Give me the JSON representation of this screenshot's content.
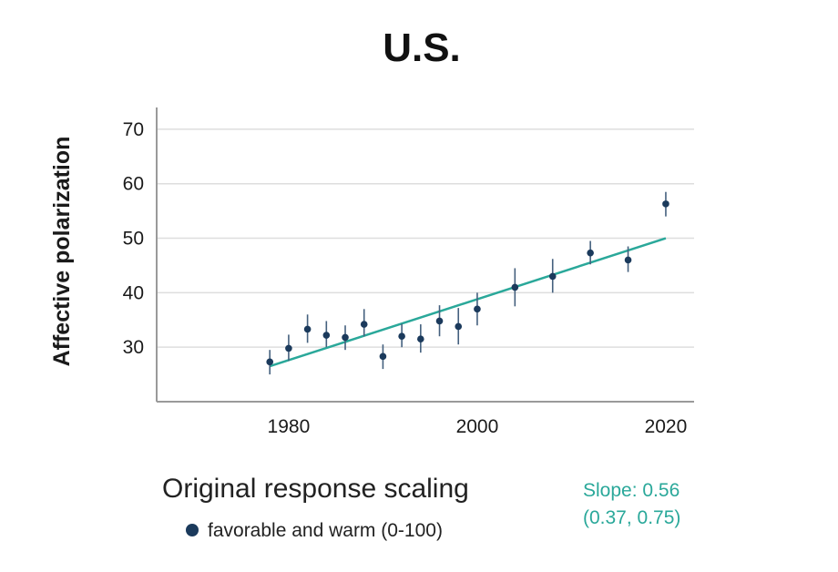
{
  "chart_data": {
    "type": "scatter",
    "title": "U.S.",
    "xlabel": "",
    "ylabel": "Affective polarization",
    "xlim": [
      1966,
      2023
    ],
    "ylim": [
      20,
      74
    ],
    "x_ticks": [
      1980,
      2000,
      2020
    ],
    "y_ticks": [
      30,
      40,
      50,
      60,
      70
    ],
    "grid": "horizontal",
    "legend": {
      "title": "Original response scaling",
      "placement": "bottom-left",
      "entries": [
        {
          "label": "favorable and warm (0-100)",
          "color": "#1b3a5c"
        }
      ]
    },
    "series": [
      {
        "name": "favorable and warm (0-100)",
        "color": "#1b3a5c",
        "points": [
          {
            "x": 1978,
            "y": 27.3,
            "lo": 25.0,
            "hi": 29.5
          },
          {
            "x": 1980,
            "y": 29.8,
            "lo": 27.5,
            "hi": 32.3
          },
          {
            "x": 1982,
            "y": 33.3,
            "lo": 30.8,
            "hi": 36.0
          },
          {
            "x": 1984,
            "y": 32.2,
            "lo": 30.0,
            "hi": 34.8
          },
          {
            "x": 1986,
            "y": 31.8,
            "lo": 29.5,
            "hi": 34.0
          },
          {
            "x": 1988,
            "y": 34.2,
            "lo": 32.0,
            "hi": 37.0
          },
          {
            "x": 1990,
            "y": 28.3,
            "lo": 26.0,
            "hi": 30.5
          },
          {
            "x": 1992,
            "y": 32.0,
            "lo": 30.0,
            "hi": 34.3
          },
          {
            "x": 1994,
            "y": 31.5,
            "lo": 29.0,
            "hi": 34.2
          },
          {
            "x": 1996,
            "y": 34.8,
            "lo": 32.0,
            "hi": 37.7
          },
          {
            "x": 1998,
            "y": 33.8,
            "lo": 30.5,
            "hi": 37.2
          },
          {
            "x": 2000,
            "y": 37.0,
            "lo": 34.0,
            "hi": 40.0
          },
          {
            "x": 2004,
            "y": 41.0,
            "lo": 37.5,
            "hi": 44.5
          },
          {
            "x": 2008,
            "y": 43.0,
            "lo": 40.0,
            "hi": 46.2
          },
          {
            "x": 2012,
            "y": 47.3,
            "lo": 45.2,
            "hi": 49.5
          },
          {
            "x": 2016,
            "y": 46.0,
            "lo": 43.8,
            "hi": 48.5
          },
          {
            "x": 2020,
            "y": 56.3,
            "lo": 54.0,
            "hi": 58.5
          }
        ]
      }
    ],
    "trend_line": {
      "color": "#2aa89a",
      "x": [
        1978,
        2020
      ],
      "y": [
        26.5,
        50.0
      ],
      "annotation": [
        "Slope: 0.56",
        "(0.37, 0.75)"
      ]
    }
  }
}
